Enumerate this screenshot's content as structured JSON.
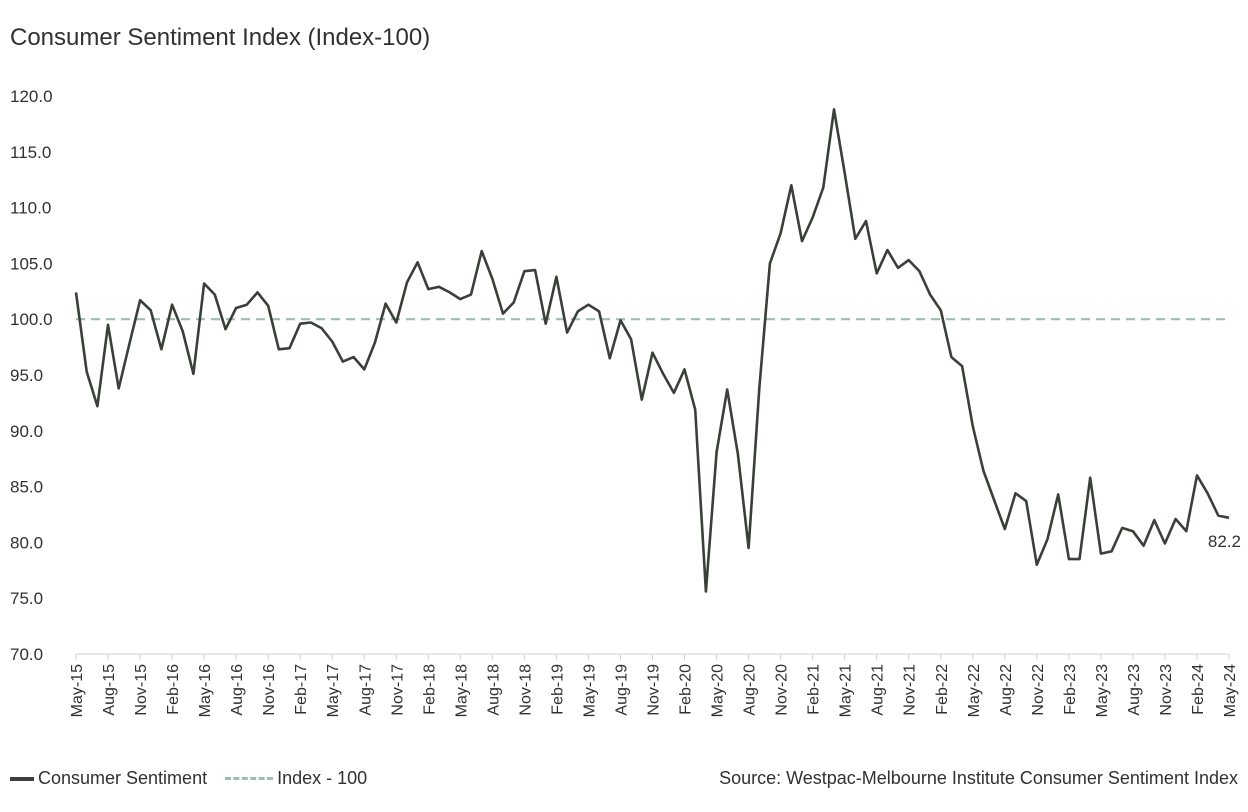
{
  "chart_data": {
    "type": "line",
    "title": "Consumer Sentiment Index (Index-100)",
    "ylim": [
      70,
      120
    ],
    "yticks": [
      "70.0",
      "75.0",
      "80.0",
      "85.0",
      "90.0",
      "95.0",
      "100.0",
      "105.0",
      "110.0",
      "115.0",
      "120.0"
    ],
    "xtick_labels": [
      "May-15",
      "Aug-15",
      "Nov-15",
      "Feb-16",
      "May-16",
      "Aug-16",
      "Nov-16",
      "Feb-17",
      "May-17",
      "Aug-17",
      "Nov-17",
      "Feb-18",
      "May-18",
      "Aug-18",
      "Nov-18",
      "Feb-19",
      "May-19",
      "Aug-19",
      "Nov-19",
      "Feb-20",
      "May-20",
      "Aug-20",
      "Nov-20",
      "Feb-21",
      "May-21",
      "Aug-21",
      "Nov-21",
      "Feb-22",
      "May-22",
      "Aug-22",
      "Nov-22",
      "Feb-23",
      "May-23",
      "Aug-23",
      "Nov-23",
      "Feb-24",
      "May-24"
    ],
    "x_start": "May-15",
    "x_end": "May-24",
    "reference_line": {
      "name": "Index - 100",
      "value": 100
    },
    "series": [
      {
        "name": "Consumer Sentiment",
        "values": [
          102.4,
          95.3,
          92.2,
          99.5,
          93.8,
          97.8,
          101.7,
          100.8,
          97.3,
          101.3,
          98.9,
          95.1,
          103.2,
          102.2,
          99.1,
          101.0,
          101.3,
          102.4,
          101.2,
          97.3,
          97.4,
          99.6,
          99.7,
          99.2,
          98.0,
          96.2,
          96.6,
          95.5,
          97.9,
          101.4,
          99.7,
          103.3,
          105.1,
          102.7,
          102.9,
          102.4,
          101.8,
          102.2,
          106.1,
          103.6,
          100.5,
          101.5,
          104.3,
          104.4,
          99.6,
          103.8,
          98.8,
          100.7,
          101.3,
          100.7,
          96.5,
          99.9,
          98.2,
          92.8,
          97.0,
          95.1,
          93.4,
          95.5,
          91.9,
          75.6,
          88.1,
          93.7,
          87.9,
          79.5,
          93.8,
          105.0,
          107.7,
          112.0,
          107.0,
          109.1,
          111.8,
          118.8,
          113.1,
          107.2,
          108.8,
          104.1,
          106.2,
          104.6,
          105.3,
          104.3,
          102.2,
          100.8,
          96.6,
          95.8,
          90.4,
          86.4,
          83.8,
          81.2,
          84.4,
          83.7,
          78.0,
          80.3,
          84.3,
          78.5,
          78.5,
          85.8,
          79.0,
          79.2,
          81.3,
          81.0,
          79.7,
          82.0,
          79.9,
          82.1,
          81.0,
          86.0,
          84.4,
          82.4,
          82.2
        ]
      }
    ],
    "end_label": "82.2",
    "colors": {
      "series": "#3a4039",
      "reference": "#9dbdb3",
      "text": "#2f3230"
    },
    "legend": {
      "position": "bottom-left",
      "items": [
        "Consumer Sentiment",
        "Index - 100"
      ]
    }
  },
  "source_text": "Source: Westpac-Melbourne Institute Consumer Sentiment Index"
}
